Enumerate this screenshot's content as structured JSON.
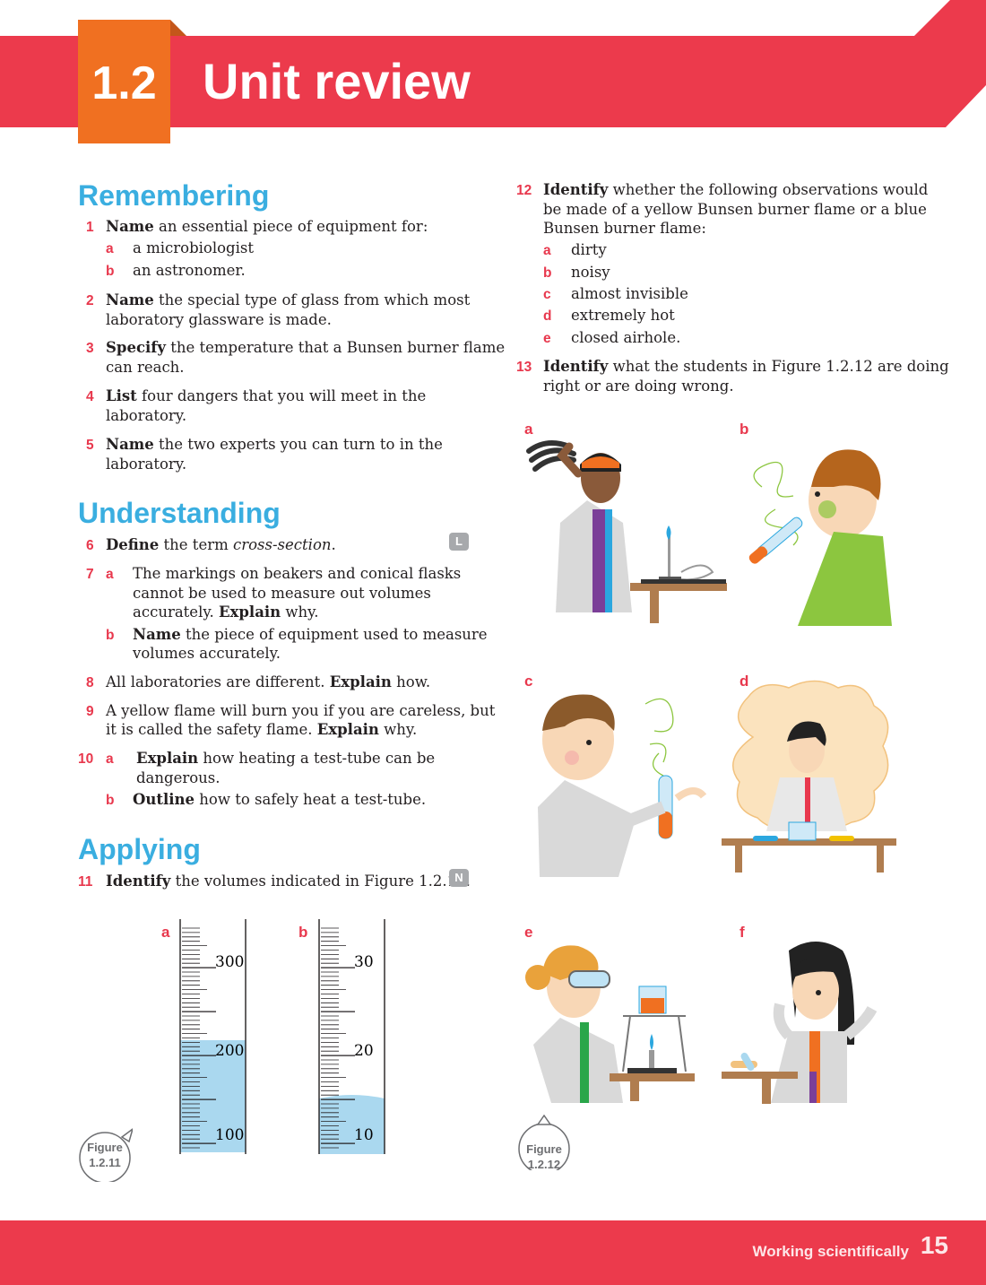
{
  "header": {
    "unit_number": "1.2",
    "title": "Unit review"
  },
  "colors": {
    "banner": "#ec3a4c",
    "unit_box": "#f07021",
    "heading": "#3aaee0",
    "question_number": "#e8384d"
  },
  "sections": {
    "remembering": "Remembering",
    "understanding": "Understanding",
    "applying": "Applying"
  },
  "q1": {
    "num": "1",
    "verb": "Name",
    "text": " an essential piece of equipment for:",
    "a_label": "a",
    "a": "a microbiologist",
    "b_label": "b",
    "b": "an astronomer."
  },
  "q2": {
    "num": "2",
    "verb": "Name",
    "text1": " the special type of glass from which most",
    "text2": "laboratory glassware is made."
  },
  "q3": {
    "num": "3",
    "verb": "Specify",
    "text1": " the temperature that a Bunsen burner flame",
    "text2": "can reach."
  },
  "q4": {
    "num": "4",
    "verb": "List",
    "text1": " four dangers that you will meet in the",
    "text2": "laboratory."
  },
  "q5": {
    "num": "5",
    "verb": "Name",
    "text1": " the two experts you can turn to in the",
    "text2": "laboratory."
  },
  "q6": {
    "num": "6",
    "verb": "Define",
    "text": " the term ",
    "term": "cross-section",
    "end": ".",
    "badge": "L"
  },
  "q7": {
    "num": "7",
    "a_label": "a",
    "a1": "The markings on beakers and conical flasks",
    "a2": "cannot be used to measure out volumes",
    "a3": "accurately. ",
    "a3_verb": "Explain",
    "a3_end": " why.",
    "b_label": "b",
    "b_verb": "Name",
    "b1": " the piece of equipment used to measure",
    "b2": "volumes accurately."
  },
  "q8": {
    "num": "8",
    "text": "All laboratories are different. ",
    "verb": "Explain",
    "end": " how."
  },
  "q9": {
    "num": "9",
    "text1": "A yellow flame will burn you if you are careless, but",
    "text2": "it is called the safety flame. ",
    "verb": "Explain",
    "end": " why."
  },
  "q10": {
    "num": "10",
    "a_label": "a",
    "a_verb": "Explain",
    "a1": " how heating a test-tube can be",
    "a2": "dangerous.",
    "b_label": "b",
    "b_verb": "Outline",
    "b1": " how to safely heat a test-tube."
  },
  "q11": {
    "num": "11",
    "verb": "Identify",
    "text": " the volumes indicated in Figure 1.2.11.",
    "badge": "N"
  },
  "q12": {
    "num": "12",
    "verb": "Identify",
    "t1": " whether the following observations would",
    "t2": "be made of a yellow Bunsen burner flame or a blue",
    "t3": "Bunsen burner flame:",
    "items": [
      {
        "label": "a",
        "text": "dirty"
      },
      {
        "label": "b",
        "text": "noisy"
      },
      {
        "label": "c",
        "text": "almost invisible"
      },
      {
        "label": "d",
        "text": "extremely hot"
      },
      {
        "label": "e",
        "text": "closed airhole."
      }
    ]
  },
  "q13": {
    "num": "13",
    "verb": "Identify",
    "t1": " what the students in Figure 1.2.12 are doing",
    "t2": "right or are doing wrong."
  },
  "figure_1211": {
    "badge_line1": "Figure",
    "badge_line2": "1.2.11",
    "a_label": "a",
    "a_ticks": [
      "300",
      "200",
      "100"
    ],
    "a_level": 200,
    "b_label": "b",
    "b_ticks": [
      "30",
      "20",
      "10"
    ],
    "b_level": 14
  },
  "figure_1212": {
    "badge_line1": "Figure",
    "badge_line2": "1.2.12",
    "panels": [
      "a",
      "b",
      "c",
      "d",
      "e",
      "f"
    ]
  },
  "footer": {
    "text": "Working scientifically",
    "page": "15"
  }
}
